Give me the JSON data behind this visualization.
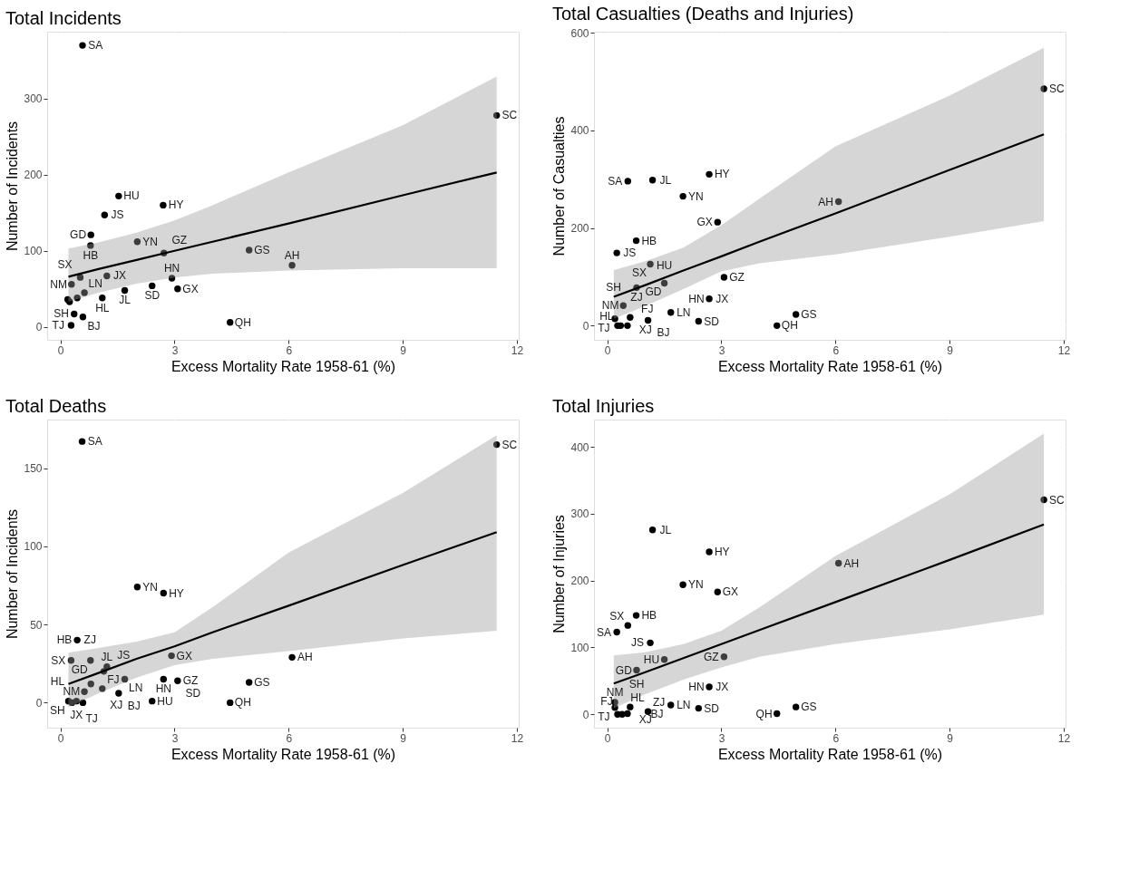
{
  "chart_data": [
    {
      "type": "scatter",
      "title": "Total Incidents",
      "xlabel": "Excess Mortality Rate 1958-61 (%)",
      "ylabel": "Number of Incidents",
      "xlim": [
        -0.35,
        12.05
      ],
      "xticks": [
        0,
        3,
        6,
        9,
        12
      ],
      "ylim": [
        -17,
        388
      ],
      "yticks": [
        0,
        100,
        200,
        300
      ],
      "grid": true,
      "series": [
        {
          "marker": "circle",
          "color": "#000000",
          "x": [
            0.58,
            11.47,
            1.53,
            2.7,
            1.16,
            0.8,
            0.79,
            2.02,
            2.72,
            4.96,
            6.09,
            0.52,
            1.22,
            0.29,
            2.93,
            2.41,
            3.08,
            1.69,
            0.63,
            0.44,
            1.1,
            0.19,
            0.24,
            0.36,
            0.59,
            0.28,
            4.46
          ],
          "values": [
            370,
            278,
            172,
            160,
            147,
            121,
            107,
            112,
            97,
            101,
            81,
            65,
            67,
            56,
            64,
            54,
            50,
            48,
            45,
            38,
            38,
            36,
            33,
            17,
            13,
            2,
            6
          ]
        },
        {
          "type": "line",
          "marker": "none",
          "color": "#000000",
          "x": [
            0.21,
            1,
            2,
            3,
            4,
            6,
            9,
            11.47
          ],
          "values": [
            66,
            76,
            88,
            100,
            112,
            136,
            173,
            203
          ],
          "lower": [
            33,
            45,
            57,
            65,
            70,
            74,
            77,
            77
          ],
          "upper": [
            103,
            111,
            124,
            140,
            160,
            203,
            265,
            329
          ]
        }
      ],
      "annotations": [
        {
          "text": "SA",
          "x": 0.58,
          "y": 370
        },
        {
          "text": "SC",
          "x": 11.47,
          "y": 278
        },
        {
          "text": "HU",
          "x": 1.53,
          "y": 172
        },
        {
          "text": "GD",
          "x": 0.8,
          "y": 121
        },
        {
          "text": "JS",
          "x": 1.16,
          "y": 147
        },
        {
          "text": "HY",
          "x": 2.7,
          "y": 160
        },
        {
          "text": "HB",
          "x": 0.79,
          "y": 107
        },
        {
          "text": "YN",
          "x": 2.02,
          "y": 112
        },
        {
          "text": "GS",
          "x": 4.96,
          "y": 101
        },
        {
          "text": "SX",
          "x": 0.52,
          "y": 65
        },
        {
          "text": "JX",
          "x": 1.22,
          "y": 67
        },
        {
          "text": "HN",
          "x": 2.93,
          "y": 64
        },
        {
          "text": "AH",
          "x": 6.09,
          "y": 81
        },
        {
          "text": "JL",
          "x": 1.69,
          "y": 48
        },
        {
          "text": "NM",
          "x": 0.29,
          "y": 56
        },
        {
          "text": "GX",
          "x": 3.08,
          "y": 50
        },
        {
          "text": "SD",
          "x": 2.41,
          "y": 54
        },
        {
          "text": "HL",
          "x": 1.1,
          "y": 38
        },
        {
          "text": "SH",
          "x": 0.36,
          "y": 17
        },
        {
          "text": "GZ",
          "x": 2.72,
          "y": 97
        },
        {
          "text": "LN",
          "x": 0.63,
          "y": 45
        },
        {
          "text": "TJ",
          "x": 0.28,
          "y": 2
        },
        {
          "text": "BJ",
          "x": 0.59,
          "y": 13
        },
        {
          "text": "QH",
          "x": 4.46,
          "y": 6
        }
      ]
    },
    {
      "type": "scatter",
      "title": "Total Casualties (Deaths and Injuries)",
      "xlabel": "Excess Mortality Rate 1958-61 (%)",
      "ylabel": "Number of Casualties",
      "xlim": [
        -0.35,
        12.05
      ],
      "xticks": [
        0,
        3,
        6,
        9,
        12
      ],
      "ylim": [
        -29,
        602
      ],
      "yticks": [
        0,
        200,
        400,
        600
      ],
      "grid": true,
      "series": [
        {
          "marker": "circle",
          "color": "#000000",
          "x": [
            11.48,
            1.19,
            0.54,
            2.68,
            1.99,
            2.9,
            6.08,
            0.76,
            0.25,
            1.13,
            1.5,
            3.07,
            0.77,
            0.42,
            2.68,
            1.67,
            4.96,
            2.4,
            4.46,
            0.2,
            0.6,
            1.07,
            0.27,
            0.53,
            0.35
          ],
          "values": [
            485,
            298,
            296,
            310,
            265,
            212,
            254,
            174,
            149,
            126,
            87,
            99,
            78,
            41,
            55,
            27,
            23,
            9,
            0,
            14,
            17,
            11,
            0,
            0,
            0
          ]
        },
        {
          "type": "line",
          "marker": "none",
          "color": "#000000",
          "x": [
            0.17,
            1,
            2,
            3,
            4,
            6,
            9,
            11.48
          ],
          "values": [
            59,
            83,
            113,
            142,
            172,
            230,
            319,
            392
          ],
          "lower": [
            14,
            40,
            75,
            111,
            128,
            146,
            182,
            214
          ],
          "upper": [
            114,
            132,
            160,
            206,
            260,
            367,
            471,
            569
          ]
        }
      ],
      "annotations": [
        {
          "text": "SC",
          "x": 11.48,
          "y": 485
        },
        {
          "text": "HY",
          "x": 2.68,
          "y": 310
        },
        {
          "text": "JL",
          "x": 1.19,
          "y": 298
        },
        {
          "text": "SA",
          "x": 0.54,
          "y": 296
        },
        {
          "text": "YN",
          "x": 1.99,
          "y": 265
        },
        {
          "text": "AH",
          "x": 6.08,
          "y": 254
        },
        {
          "text": "HB",
          "x": 0.76,
          "y": 174
        },
        {
          "text": "GX",
          "x": 2.9,
          "y": 212
        },
        {
          "text": "JS",
          "x": 0.25,
          "y": 149
        },
        {
          "text": "SX",
          "x": 1.13,
          "y": 126
        },
        {
          "text": "GZ",
          "x": 3.07,
          "y": 99
        },
        {
          "text": "ZJ",
          "x": 0.77,
          "y": 78
        },
        {
          "text": "GD",
          "x": 1.5,
          "y": 87
        },
        {
          "text": "HU",
          "x": 1.5,
          "y": 87
        },
        {
          "text": "SH",
          "x": 0.77,
          "y": 78
        },
        {
          "text": "JX",
          "x": 2.68,
          "y": 55
        },
        {
          "text": "NM",
          "x": 0.42,
          "y": 41
        },
        {
          "text": "XJ",
          "x": 0.6,
          "y": 17
        },
        {
          "text": "HN",
          "x": 2.68,
          "y": 55
        },
        {
          "text": "LN",
          "x": 1.67,
          "y": 27
        },
        {
          "text": "GS",
          "x": 4.96,
          "y": 23
        },
        {
          "text": "TJ",
          "x": 0.2,
          "y": 14
        },
        {
          "text": "HL",
          "x": 0.27,
          "y": 0
        },
        {
          "text": "BJ",
          "x": 1.07,
          "y": 11
        },
        {
          "text": "FJ",
          "x": 0.53,
          "y": 0
        },
        {
          "text": "SD",
          "x": 2.4,
          "y": 9
        },
        {
          "text": "QH",
          "x": 4.46,
          "y": 0
        }
      ]
    },
    {
      "type": "scatter",
      "title": "Total Deaths",
      "xlabel": "Excess Mortality Rate 1958-61 (%)",
      "ylabel": "Number of Incidents",
      "xlim": [
        -0.35,
        12.05
      ],
      "xticks": [
        0,
        3,
        6,
        9,
        12
      ],
      "ylim": [
        -16,
        181
      ],
      "yticks": [
        0,
        50,
        100,
        150
      ],
      "grid": true,
      "series": [
        {
          "marker": "circle",
          "color": "#000000",
          "x": [
            0.57,
            11.47,
            2.02,
            2.71,
            0.44,
            0.28,
            0.79,
            1.22,
            1.14,
            2.92,
            6.09,
            1.69,
            2.71,
            3.08,
            4.96,
            0.8,
            1.1,
            0.63,
            1.53,
            2.41,
            4.46,
            0.21,
            0.3,
            0.42,
            0.59
          ],
          "values": [
            167,
            165,
            74,
            70,
            40,
            27,
            27,
            23,
            20,
            30,
            29,
            15,
            15,
            14,
            13,
            12,
            9,
            7,
            6,
            1,
            0,
            1,
            0,
            1,
            0
          ]
        },
        {
          "type": "line",
          "marker": "none",
          "color": "#000000",
          "x": [
            0.21,
            1,
            2,
            3,
            4,
            6,
            9,
            11.47
          ],
          "values": [
            12,
            19,
            28,
            36,
            45,
            62,
            88,
            109
          ],
          "lower": [
            -3,
            6,
            16,
            24,
            28,
            33,
            41,
            46
          ],
          "upper": [
            32,
            35,
            39,
            45,
            61,
            96,
            134,
            171
          ]
        }
      ],
      "annotations": [
        {
          "text": "SC",
          "x": 11.47,
          "y": 165
        },
        {
          "text": "SA",
          "x": 0.57,
          "y": 167
        },
        {
          "text": "YN",
          "x": 2.02,
          "y": 74
        },
        {
          "text": "HY",
          "x": 2.71,
          "y": 70
        },
        {
          "text": "ZJ",
          "x": 0.44,
          "y": 40
        },
        {
          "text": "HB",
          "x": 0.44,
          "y": 40
        },
        {
          "text": "AH",
          "x": 6.09,
          "y": 29
        },
        {
          "text": "GX",
          "x": 2.92,
          "y": 30
        },
        {
          "text": "JL",
          "x": 1.22,
          "y": 23
        },
        {
          "text": "SX",
          "x": 0.28,
          "y": 27
        },
        {
          "text": "GD",
          "x": 0.79,
          "y": 27
        },
        {
          "text": "HN",
          "x": 2.71,
          "y": 15
        },
        {
          "text": "XJ",
          "x": 0.8,
          "y": 12
        },
        {
          "text": "JS",
          "x": 1.14,
          "y": 20
        },
        {
          "text": "LN",
          "x": 1.69,
          "y": 15
        },
        {
          "text": "FJ",
          "x": 1.1,
          "y": 9
        },
        {
          "text": "NM",
          "x": 0.63,
          "y": 7
        },
        {
          "text": "GZ",
          "x": 3.08,
          "y": 14
        },
        {
          "text": "JX",
          "x": 0.42,
          "y": 1
        },
        {
          "text": "HU",
          "x": 2.41,
          "y": 1
        },
        {
          "text": "SH",
          "x": 0.21,
          "y": 1
        },
        {
          "text": "TJ",
          "x": 0.3,
          "y": 0
        },
        {
          "text": "HL",
          "x": 0.59,
          "y": 0
        },
        {
          "text": "BJ",
          "x": 1.53,
          "y": 6
        },
        {
          "text": "SD",
          "x": 3.08,
          "y": 14
        },
        {
          "text": "GS",
          "x": 4.96,
          "y": 13
        },
        {
          "text": "QH",
          "x": 4.46,
          "y": 0
        }
      ]
    },
    {
      "type": "scatter",
      "title": "Total Injuries",
      "xlabel": "Excess Mortality Rate 1958-61 (%)",
      "ylabel": "Number of Injuries",
      "xlim": [
        -0.35,
        12.05
      ],
      "xticks": [
        0,
        3,
        6,
        9,
        12
      ],
      "ylim": [
        -20,
        441
      ],
      "yticks": [
        0,
        100,
        200,
        300,
        400
      ],
      "grid": true,
      "series": [
        {
          "marker": "circle",
          "color": "#000000",
          "x": [
            11.48,
            1.19,
            2.68,
            6.08,
            1.99,
            2.9,
            0.76,
            0.54,
            0.25,
            1.13,
            1.5,
            3.07,
            0.77,
            2.68,
            1.67,
            4.96,
            2.4,
            4.46,
            0.2,
            0.2,
            0.6,
            1.07,
            0.27,
            0.53,
            0.39
          ],
          "values": [
            321,
            276,
            243,
            226,
            194,
            183,
            148,
            133,
            123,
            107,
            82,
            86,
            66,
            41,
            14,
            11,
            9,
            1,
            18,
            10,
            11,
            4,
            0,
            1,
            0
          ]
        },
        {
          "type": "line",
          "marker": "none",
          "color": "#000000",
          "x": [
            0.17,
            1,
            2,
            3,
            4,
            6,
            9,
            11.48
          ],
          "values": [
            46,
            63,
            84,
            105,
            126,
            168,
            231,
            284
          ],
          "lower": [
            9,
            30,
            52,
            70,
            86,
            105,
            127,
            149
          ],
          "upper": [
            88,
            93,
            105,
            125,
            160,
            237,
            329,
            420
          ]
        }
      ],
      "annotations": [
        {
          "text": "SC",
          "x": 11.48,
          "y": 321
        },
        {
          "text": "HY",
          "x": 2.68,
          "y": 243
        },
        {
          "text": "AH",
          "x": 6.08,
          "y": 226
        },
        {
          "text": "JL",
          "x": 1.19,
          "y": 276
        },
        {
          "text": "YN",
          "x": 1.99,
          "y": 194
        },
        {
          "text": "HB",
          "x": 0.76,
          "y": 148
        },
        {
          "text": "GX",
          "x": 2.9,
          "y": 183
        },
        {
          "text": "SA",
          "x": 0.25,
          "y": 123
        },
        {
          "text": "JS",
          "x": 1.13,
          "y": 107
        },
        {
          "text": "SX",
          "x": 0.54,
          "y": 133
        },
        {
          "text": "GZ",
          "x": 3.07,
          "y": 86
        },
        {
          "text": "HU",
          "x": 1.5,
          "y": 82
        },
        {
          "text": "GD",
          "x": 0.77,
          "y": 66
        },
        {
          "text": "SH",
          "x": 0.77,
          "y": 66
        },
        {
          "text": "JX",
          "x": 2.68,
          "y": 41
        },
        {
          "text": "HN",
          "x": 2.68,
          "y": 41
        },
        {
          "text": "NM",
          "x": 0.2,
          "y": 18
        },
        {
          "text": "XJ",
          "x": 0.6,
          "y": 11
        },
        {
          "text": "LN",
          "x": 1.67,
          "y": 14
        },
        {
          "text": "GS",
          "x": 4.96,
          "y": 11
        },
        {
          "text": "TJ",
          "x": 0.2,
          "y": 10
        },
        {
          "text": "HL",
          "x": 0.27,
          "y": 0
        },
        {
          "text": "ZJ",
          "x": 1.07,
          "y": 4
        },
        {
          "text": "BJ",
          "x": 0.53,
          "y": 1
        },
        {
          "text": "FJ",
          "x": 0.39,
          "y": 0
        },
        {
          "text": "SD",
          "x": 2.4,
          "y": 9
        },
        {
          "text": "QH",
          "x": 4.46,
          "y": 1
        }
      ]
    }
  ]
}
